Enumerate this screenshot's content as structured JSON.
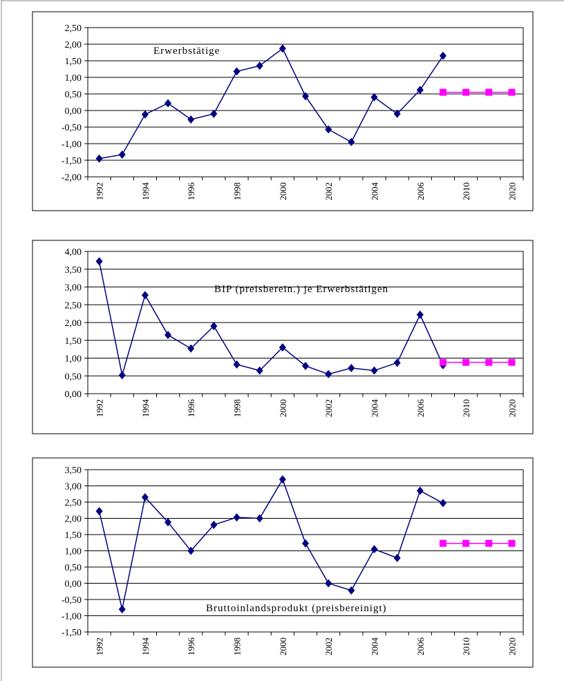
{
  "chart_data": [
    {
      "type": "line",
      "annotation": "Erwerbstätige",
      "categories": [
        "1992",
        null,
        "1994",
        null,
        "1996",
        null,
        "1998",
        null,
        "2000",
        null,
        "2002",
        null,
        "2004",
        null,
        "2006",
        null,
        "2010",
        null,
        "2020"
      ],
      "series": [
        {
          "color": "#000080",
          "marker": "diamond",
          "values": [
            -1.45,
            -1.33,
            -0.12,
            0.22,
            -0.27,
            -0.1,
            1.18,
            1.35,
            1.87,
            0.43,
            -0.57,
            -0.95,
            0.4,
            -0.1,
            0.62,
            1.65,
            null,
            null,
            null
          ]
        },
        {
          "color": "#ff00ff",
          "marker": "square",
          "values": [
            null,
            null,
            null,
            null,
            null,
            null,
            null,
            null,
            null,
            null,
            null,
            null,
            null,
            null,
            null,
            0.55,
            0.55,
            0.55,
            0.55
          ]
        }
      ],
      "ylim": [
        -2,
        2.5
      ],
      "yticks": [
        {
          "value": -2,
          "label": "-2,00"
        },
        {
          "value": -1.5,
          "label": "-1,50"
        },
        {
          "value": -1,
          "label": "-1,00"
        },
        {
          "value": -0.5,
          "label": "-0,50"
        },
        {
          "value": 0,
          "label": "0,00"
        },
        {
          "value": 0.5,
          "label": "0,50"
        },
        {
          "value": 1,
          "label": "1,00"
        },
        {
          "value": 1.5,
          "label": "1,50"
        },
        {
          "value": 2,
          "label": "2,00"
        },
        {
          "value": 2.5,
          "label": "2,50"
        }
      ],
      "grid": true
    },
    {
      "type": "line",
      "annotation": "BIP (preisberein.) je Erwerbstätigen",
      "categories": [
        "1992",
        null,
        "1994",
        null,
        "1996",
        null,
        "1998",
        null,
        "2000",
        null,
        "2002",
        null,
        "2004",
        null,
        "2006",
        null,
        "2010",
        null,
        "2020"
      ],
      "series": [
        {
          "color": "#000080",
          "marker": "diamond",
          "values": [
            3.72,
            0.52,
            2.77,
            1.65,
            1.27,
            1.9,
            0.82,
            0.65,
            1.3,
            0.78,
            0.55,
            0.72,
            0.65,
            0.87,
            2.22,
            0.8,
            null,
            null,
            null
          ]
        },
        {
          "color": "#ff00ff",
          "marker": "square",
          "values": [
            null,
            null,
            null,
            null,
            null,
            null,
            null,
            null,
            null,
            null,
            null,
            null,
            null,
            null,
            null,
            0.88,
            0.88,
            0.88,
            0.88
          ]
        }
      ],
      "ylim": [
        0,
        4
      ],
      "yticks": [
        {
          "value": 0,
          "label": "0,00"
        },
        {
          "value": 0.5,
          "label": "0,50"
        },
        {
          "value": 1,
          "label": "1,00"
        },
        {
          "value": 1.5,
          "label": "1,50"
        },
        {
          "value": 2,
          "label": "2,00"
        },
        {
          "value": 2.5,
          "label": "2,50"
        },
        {
          "value": 3,
          "label": "3,00"
        },
        {
          "value": 3.5,
          "label": "3,50"
        },
        {
          "value": 4,
          "label": "4,00"
        }
      ],
      "grid": true
    },
    {
      "type": "line",
      "annotation": "Bruttoinlandsprodukt (preisbereinigt)",
      "categories": [
        "1992",
        null,
        "1994",
        null,
        "1996",
        null,
        "1998",
        null,
        "2000",
        null,
        "2002",
        null,
        "2004",
        null,
        "2006",
        null,
        "2010",
        null,
        "2020"
      ],
      "series": [
        {
          "color": "#000080",
          "marker": "diamond",
          "values": [
            2.22,
            -0.8,
            2.65,
            1.88,
            1.0,
            1.8,
            2.03,
            2.0,
            3.2,
            1.23,
            0.0,
            -0.22,
            1.05,
            0.78,
            2.85,
            2.47,
            null,
            null,
            null
          ]
        },
        {
          "color": "#ff00ff",
          "marker": "square",
          "values": [
            null,
            null,
            null,
            null,
            null,
            null,
            null,
            null,
            null,
            null,
            null,
            null,
            null,
            null,
            null,
            1.23,
            1.23,
            1.23,
            1.23
          ]
        }
      ],
      "ylim": [
        -1.5,
        3.5
      ],
      "yticks": [
        {
          "value": -1.5,
          "label": "-1,50"
        },
        {
          "value": -1,
          "label": "-1,00"
        },
        {
          "value": -0.5,
          "label": "-0,50"
        },
        {
          "value": 0,
          "label": "0,00"
        },
        {
          "value": 0.5,
          "label": "0,50"
        },
        {
          "value": 1,
          "label": "1,00"
        },
        {
          "value": 1.5,
          "label": "1,50"
        },
        {
          "value": 2,
          "label": "2,00"
        },
        {
          "value": 2.5,
          "label": "2,50"
        },
        {
          "value": 3,
          "label": "3,00"
        },
        {
          "value": 3.5,
          "label": "3,50"
        }
      ],
      "grid": true
    }
  ]
}
